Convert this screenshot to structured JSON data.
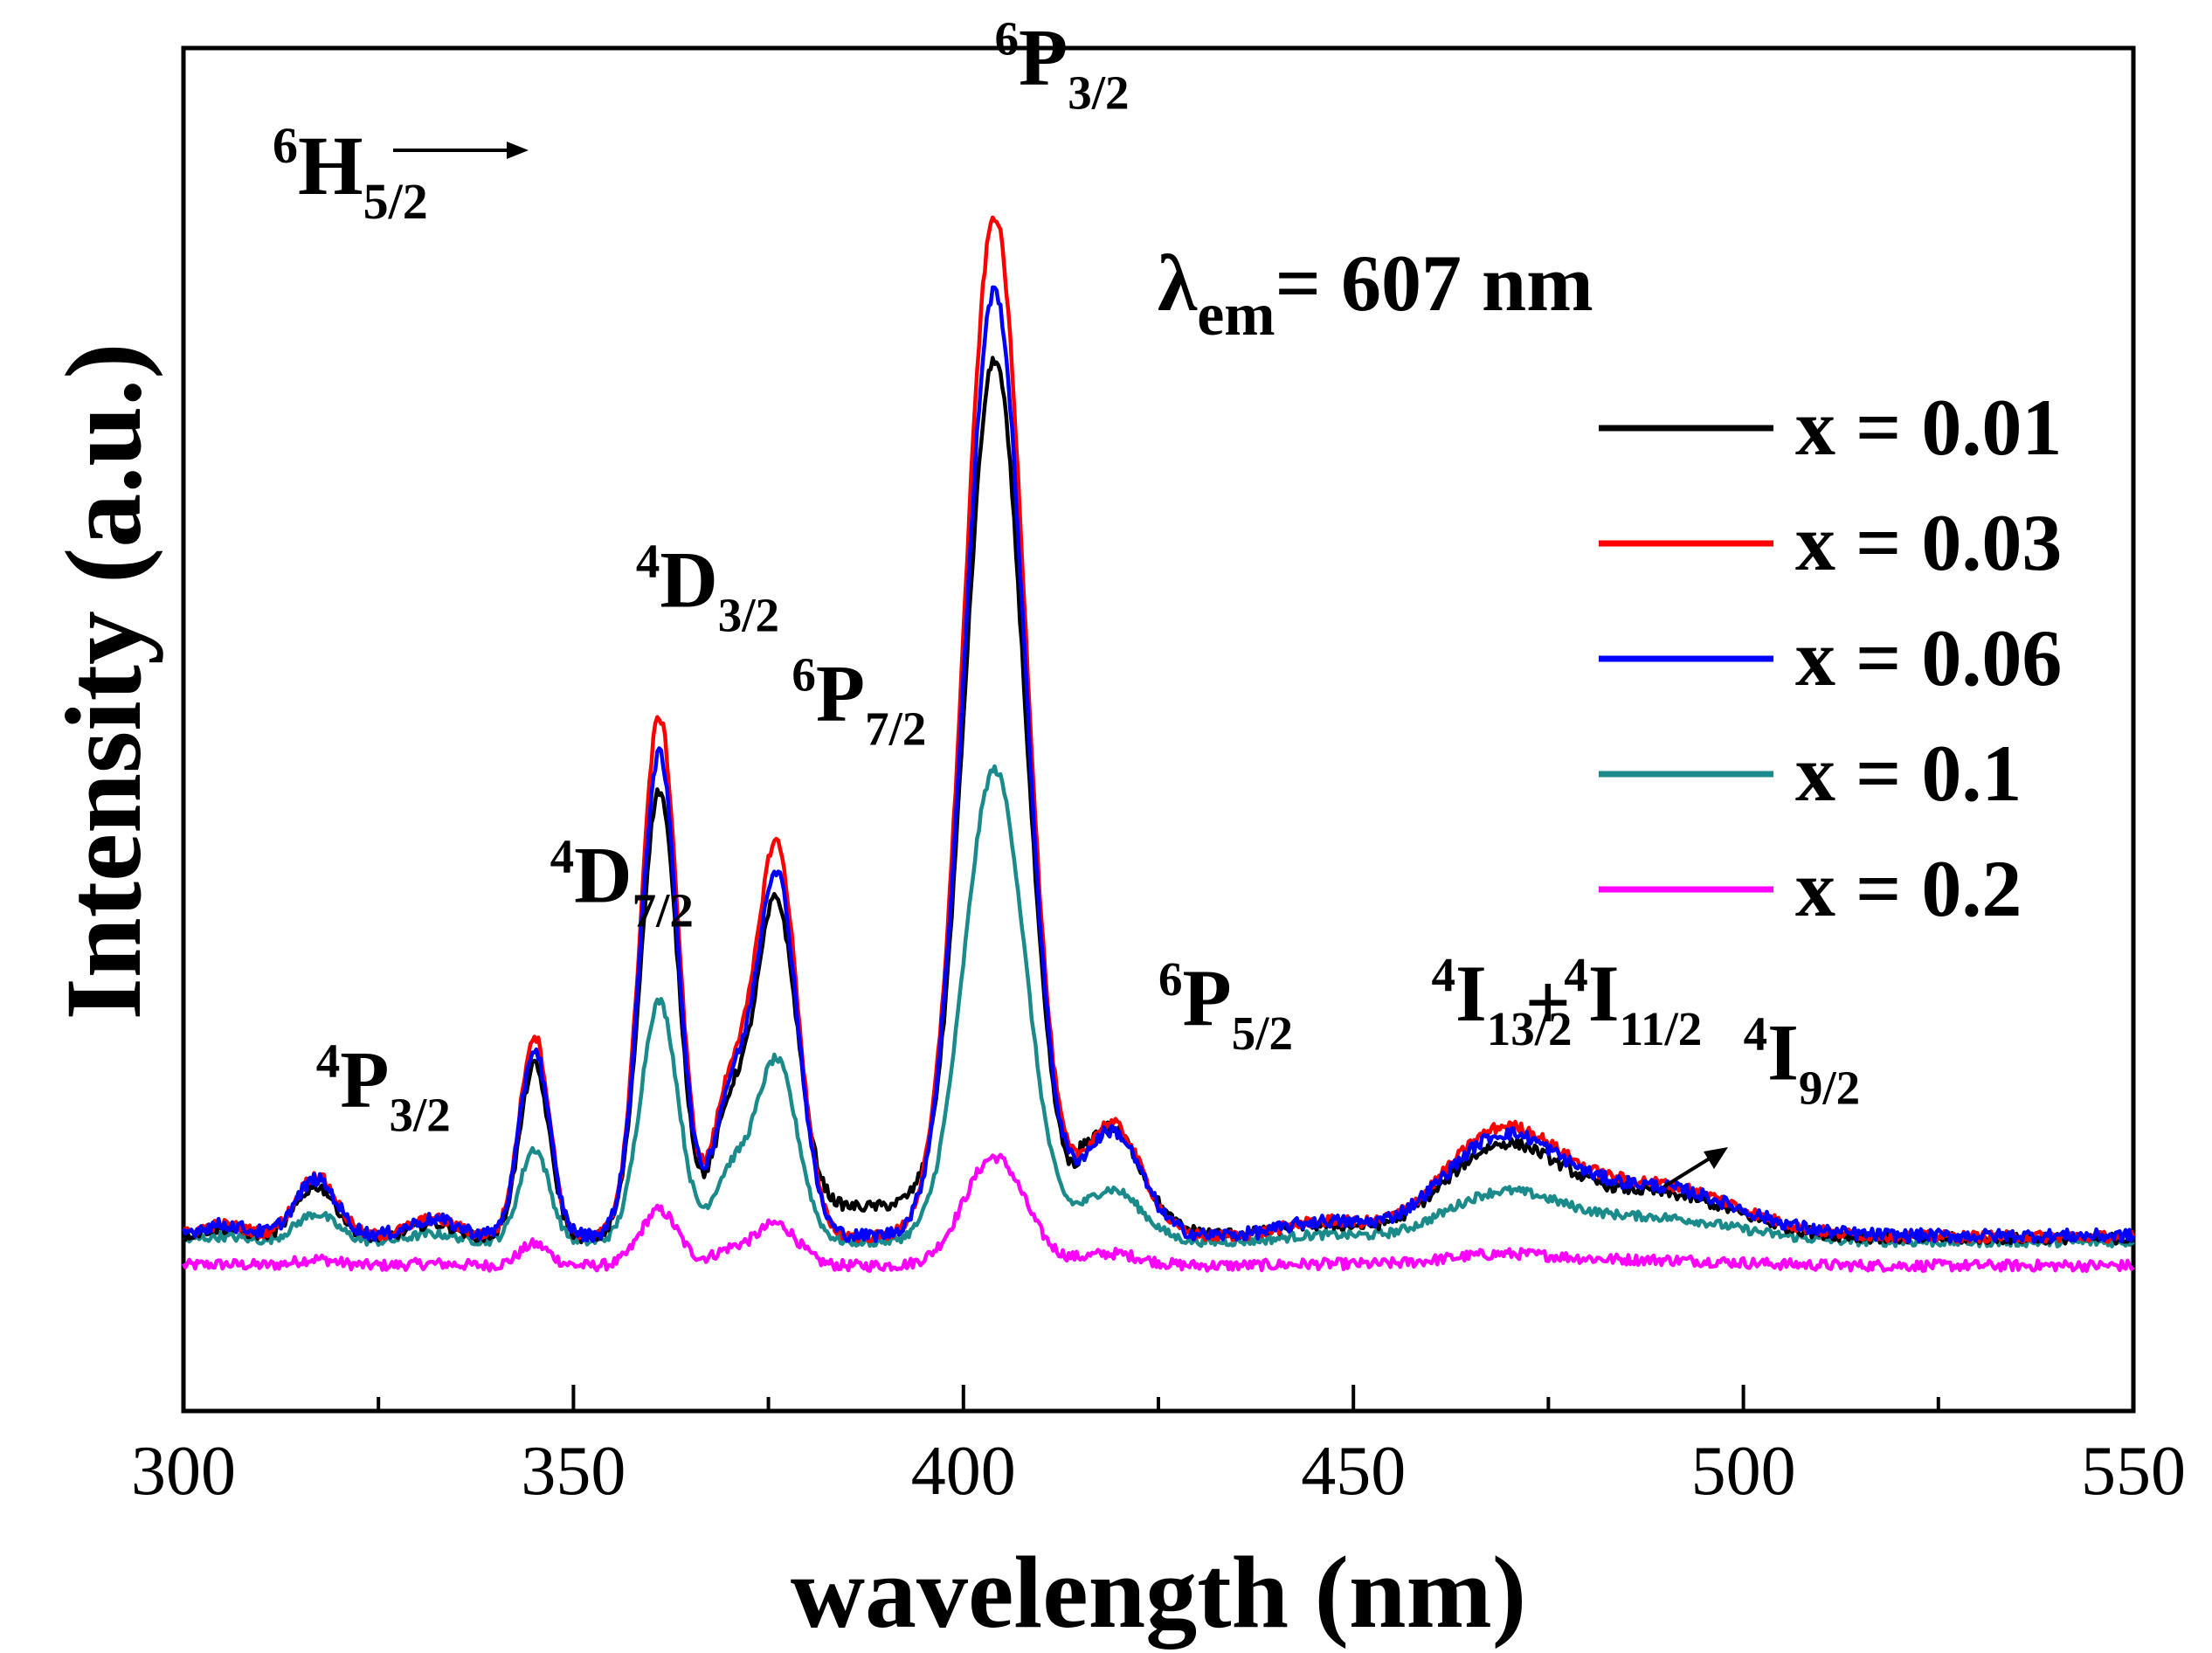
{
  "chart_data": {
    "type": "line",
    "title": "",
    "xlabel": "wavelength (nm)",
    "ylabel": "Intensity (a.u.)",
    "xlim": [
      300,
      550
    ],
    "ylim": [
      -0.18,
      1.32
    ],
    "x_ticks": [
      300,
      350,
      400,
      450,
      500,
      550
    ],
    "x_tick_labels": [
      "300",
      "350",
      "400",
      "450",
      "500",
      "550"
    ],
    "x_minor_ticks": [
      325,
      375,
      425,
      475,
      525
    ],
    "y_ticks_shown": false,
    "legend_position": "right",
    "excitation_label": {
      "main": "λ",
      "sub": "em",
      "rest": "= 607 nm"
    },
    "ground_state": {
      "sup": "6",
      "main": "H",
      "sub": "5/2"
    },
    "annotations": [
      {
        "sup": "4",
        "main": "P",
        "sub": "3/2",
        "x": 317,
        "y": 0.155
      },
      {
        "sup": "4",
        "main": "D",
        "sub": "7/2",
        "x": 347,
        "y": 0.38
      },
      {
        "sup": "4",
        "main": "D",
        "sub": "3/2",
        "x": 358,
        "y": 0.705
      },
      {
        "sup": "6",
        "main": "P",
        "sub": "7/2",
        "x": 378,
        "y": 0.58
      },
      {
        "sup": "6",
        "main": "P",
        "sub": "3/2",
        "x": 404,
        "y": 1.28
      },
      {
        "sup": "6",
        "main": "P",
        "sub": "5/2",
        "x": 425,
        "y": 0.245
      },
      {
        "sup": "4",
        "main": "I",
        "sub": "13/2",
        "x": 460,
        "y": 0.25
      },
      {
        "sup": "",
        "main": "+",
        "sub": "",
        "x": 472,
        "y": 0.24
      },
      {
        "sup": "4",
        "main": "I",
        "sub": "11/2",
        "x": 477,
        "y": 0.25
      },
      {
        "sup": "4",
        "main": "I",
        "sub": "9/2",
        "x": 500,
        "y": 0.185
      }
    ],
    "series": [
      {
        "name": "x = 0.01",
        "color": "#000000",
        "scale": 0.93,
        "base": 0.01,
        "noise": 0.006,
        "plateau": 0.035
      },
      {
        "name": "x = 0.03",
        "color": "#ff0000",
        "scale": 1.08,
        "base": 0.012,
        "noise": 0.006,
        "plateau": 0.0
      },
      {
        "name": "x = 0.06",
        "color": "#0000ff",
        "scale": 1.0,
        "base": 0.013,
        "noise": 0.007,
        "plateau": 0.0
      },
      {
        "name": "x = 0.1",
        "color": "#1b8a8a",
        "scale": 0.5,
        "base": 0.006,
        "noise": 0.005,
        "plateau": 0.0
      },
      {
        "name": "x = 0.2",
        "color": "#ff00ff",
        "scale": 0.115,
        "base": -0.02,
        "noise": 0.006,
        "plateau": 0.0
      }
    ],
    "peaks": [
      {
        "x": 305,
        "amp": 0.012,
        "w": 3.0
      },
      {
        "x": 317,
        "amp": 0.062,
        "w": 2.6
      },
      {
        "x": 332,
        "amp": 0.018,
        "w": 3.0
      },
      {
        "x": 345,
        "amp": 0.205,
        "w": 1.9
      },
      {
        "x": 361,
        "amp": 0.53,
        "w": 2.4
      },
      {
        "x": 370,
        "amp": 0.14,
        "w": 2.2
      },
      {
        "x": 376,
        "amp": 0.4,
        "w": 2.7
      },
      {
        "x": 404,
        "amp": 1.04,
        "w": 3.9
      },
      {
        "x": 419,
        "amp": 0.115,
        "w": 3.8
      },
      {
        "x": 446,
        "amp": 0.015,
        "w": 5.0
      },
      {
        "x": 469,
        "amp": 0.105,
        "w": 7.5
      },
      {
        "x": 489,
        "amp": 0.052,
        "w": 10.0
      }
    ]
  }
}
